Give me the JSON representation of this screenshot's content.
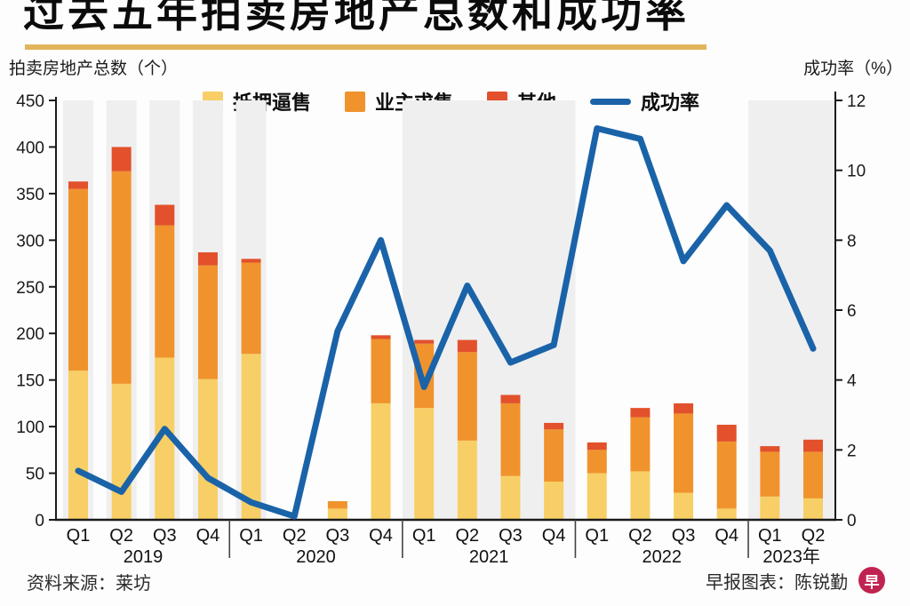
{
  "header": {
    "title": "过去五年拍卖房地产总数和成功率"
  },
  "colors": {
    "rule": "#e2b55c",
    "mortgagee": "#f7cf66",
    "owner": "#f0932d",
    "others": "#e2512b",
    "line": "#1a63a8",
    "band": "#efeff0",
    "axis": "#1a1a1a",
    "logo": "#c02350"
  },
  "left_axis": {
    "label": "拍卖房地产总数（个）",
    "min": 0,
    "max": 450,
    "step": 50
  },
  "right_axis": {
    "label": "成功率（%）",
    "min": 0,
    "max": 12,
    "step": 2
  },
  "legend": [
    {
      "label": "抵押逼售",
      "swatch": "square",
      "color_key": "mortgagee"
    },
    {
      "label": "业主求售",
      "swatch": "square",
      "color_key": "owner"
    },
    {
      "label": "其他",
      "swatch": "square",
      "color_key": "others"
    },
    {
      "label": "成功率",
      "swatch": "line",
      "color_key": "line"
    }
  ],
  "chart_data": {
    "type": "bar",
    "subtype": "stacked-bar-with-line",
    "title": "过去五年拍卖房地产总数和成功率",
    "ylabel_left": "拍卖房地产总数（个）",
    "ylabel_right": "成功率（%）",
    "ylim_left": [
      0,
      450
    ],
    "ylim_right": [
      0,
      12
    ],
    "grid": false,
    "legend_position": "top",
    "year_groups": [
      {
        "label": "2019",
        "quarters": 4
      },
      {
        "label": "2020",
        "quarters": 4
      },
      {
        "label": "2021",
        "quarters": 4
      },
      {
        "label": "2022",
        "quarters": 4
      },
      {
        "label": "2023年",
        "quarters": 2
      }
    ],
    "quarter_labels": [
      "Q1",
      "Q2",
      "Q3",
      "Q4",
      "Q1",
      "Q2",
      "Q3",
      "Q4",
      "Q1",
      "Q2",
      "Q3",
      "Q4",
      "Q1",
      "Q2",
      "Q3",
      "Q4",
      "Q1",
      "Q2"
    ],
    "categories": [
      "2019 Q1",
      "2019 Q2",
      "2019 Q3",
      "2019 Q4",
      "2020 Q1",
      "2020 Q2",
      "2020 Q3",
      "2020 Q4",
      "2021 Q1",
      "2021 Q2",
      "2021 Q3",
      "2021 Q4",
      "2022 Q1",
      "2022 Q2",
      "2022 Q3",
      "2022 Q4",
      "2023 Q1",
      "2023 Q2"
    ],
    "series": [
      {
        "name": "抵押逼售",
        "type": "bar-stack",
        "color_key": "mortgagee",
        "values": [
          160,
          146,
          174,
          151,
          178,
          0,
          12,
          125,
          120,
          85,
          47,
          41,
          50,
          52,
          29,
          12,
          25,
          23
        ]
      },
      {
        "name": "业主求售",
        "type": "bar-stack",
        "color_key": "owner",
        "values": [
          195,
          228,
          142,
          122,
          98,
          0,
          8,
          69,
          69,
          95,
          78,
          56,
          25,
          58,
          85,
          72,
          48,
          50
        ]
      },
      {
        "name": "其他",
        "type": "bar-stack",
        "color_key": "others",
        "values": [
          8,
          26,
          22,
          14,
          4,
          0,
          0,
          4,
          4,
          13,
          9,
          7,
          8,
          10,
          11,
          18,
          6,
          13
        ]
      },
      {
        "name": "成功率",
        "type": "line",
        "axis": "right",
        "color_key": "line",
        "values": [
          1.4,
          0.8,
          2.6,
          1.2,
          0.5,
          0.1,
          5.4,
          8.0,
          3.8,
          6.7,
          4.5,
          5.0,
          11.2,
          10.9,
          7.4,
          9.0,
          7.7,
          4.9
        ]
      }
    ],
    "bar_totals": [
      363,
      400,
      338,
      287,
      280,
      0,
      20,
      198,
      193,
      193,
      134,
      104,
      83,
      120,
      125,
      102,
      79,
      86
    ],
    "background": {
      "shaded_quarter_indices": [
        0,
        1,
        2,
        3,
        4
      ],
      "shaded_year_groups": [
        "2021",
        "2023年"
      ]
    }
  },
  "footer": {
    "source": "资料来源：莱坊",
    "credit": "早报图表：陈锐勤",
    "logo_glyph": "早"
  }
}
